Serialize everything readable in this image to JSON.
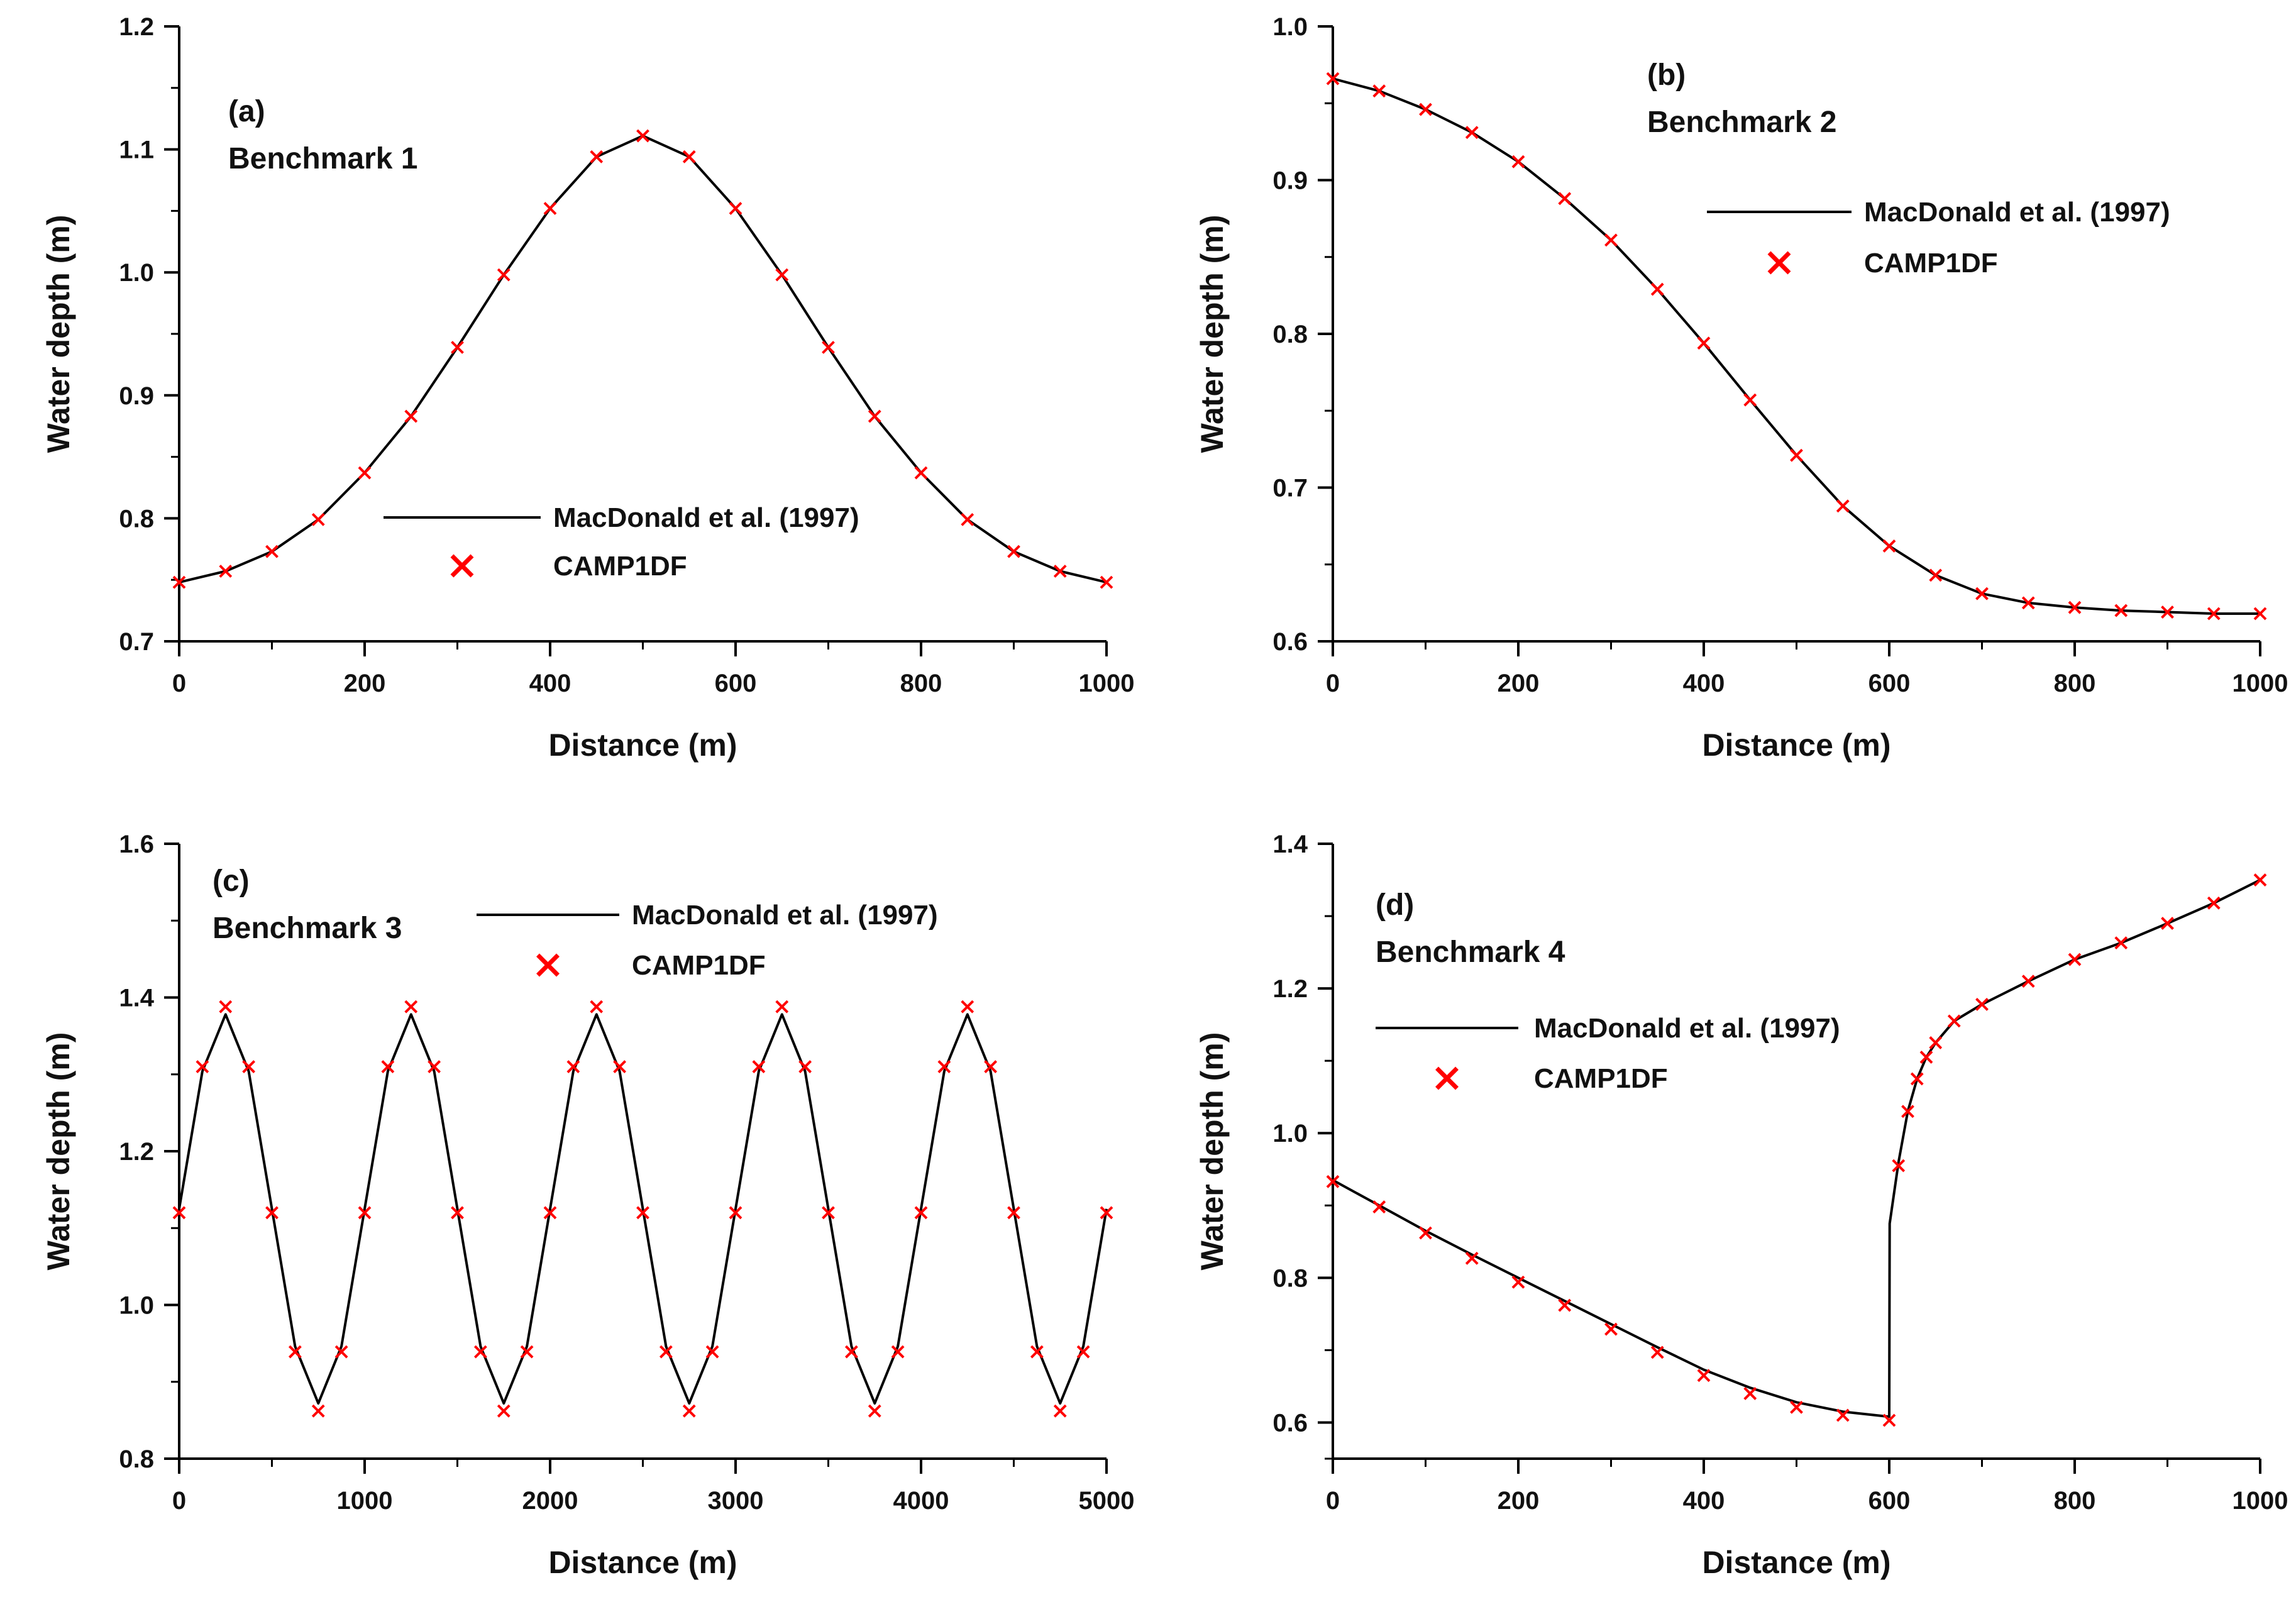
{
  "figure": {
    "line_color": "#000000",
    "marker_color": "#ff0000"
  },
  "chart_data": [
    {
      "id": "a",
      "type": "line",
      "panel_label": "(a)",
      "subtitle": "Benchmark 1",
      "xlabel": "Distance (m)",
      "ylabel": "Water depth (m)",
      "xlim": [
        0,
        1000
      ],
      "ylim": [
        0.7,
        1.2
      ],
      "xticks": [
        0,
        200,
        400,
        600,
        800,
        1000
      ],
      "xtick_labels": [
        "0",
        "200",
        "400",
        "600",
        "800",
        "1000"
      ],
      "yticks": [
        0.7,
        0.8,
        0.9,
        1.0,
        1.1,
        1.2
      ],
      "ytick_labels": [
        "0.7",
        "0.8",
        "0.9",
        "1.0",
        "1.1",
        "1.2"
      ],
      "legend": [
        "MacDonald et al. (1997)",
        "CAMP1DF"
      ],
      "legend_position": "lower-center",
      "series": [
        {
          "name": "MacDonald et al. (1997)",
          "style": "line",
          "x": [
            0,
            50,
            100,
            150,
            200,
            250,
            300,
            350,
            400,
            450,
            500,
            550,
            600,
            650,
            700,
            750,
            800,
            850,
            900,
            950,
            1000
          ],
          "y": [
            0.748,
            0.757,
            0.773,
            0.799,
            0.837,
            0.883,
            0.939,
            0.998,
            1.052,
            1.094,
            1.111,
            1.094,
            1.052,
            0.998,
            0.939,
            0.883,
            0.837,
            0.799,
            0.773,
            0.757,
            0.748
          ]
        },
        {
          "name": "CAMP1DF",
          "style": "marker-x",
          "x": [
            0,
            50,
            100,
            150,
            200,
            250,
            300,
            350,
            400,
            450,
            500,
            550,
            600,
            650,
            700,
            750,
            800,
            850,
            900,
            950,
            1000
          ],
          "y": [
            0.748,
            0.757,
            0.773,
            0.799,
            0.837,
            0.883,
            0.939,
            0.998,
            1.052,
            1.094,
            1.111,
            1.094,
            1.052,
            0.998,
            0.939,
            0.883,
            0.837,
            0.799,
            0.773,
            0.757,
            0.748
          ]
        }
      ]
    },
    {
      "id": "b",
      "type": "line",
      "panel_label": "(b)",
      "subtitle": "Benchmark 2",
      "xlabel": "Distance (m)",
      "ylabel": "Water depth (m)",
      "xlim": [
        0,
        1000
      ],
      "ylim": [
        0.6,
        1.0
      ],
      "xticks": [
        0,
        200,
        400,
        600,
        800,
        1000
      ],
      "xtick_labels": [
        "0",
        "200",
        "400",
        "600",
        "800",
        "1000"
      ],
      "yticks": [
        0.6,
        0.7,
        0.8,
        0.9,
        1.0
      ],
      "ytick_labels": [
        "0.6",
        "0.7",
        "0.8",
        "0.9",
        "1.0"
      ],
      "legend": [
        "MacDonald et al. (1997)",
        "CAMP1DF"
      ],
      "legend_position": "upper-right",
      "series": [
        {
          "name": "MacDonald et al. (1997)",
          "style": "line",
          "x": [
            0,
            50,
            100,
            150,
            200,
            250,
            300,
            350,
            400,
            450,
            500,
            550,
            600,
            650,
            700,
            750,
            800,
            850,
            900,
            950,
            1000
          ],
          "y": [
            0.966,
            0.958,
            0.946,
            0.931,
            0.912,
            0.888,
            0.861,
            0.829,
            0.794,
            0.757,
            0.721,
            0.688,
            0.662,
            0.643,
            0.631,
            0.625,
            0.622,
            0.62,
            0.619,
            0.618,
            0.618
          ]
        },
        {
          "name": "CAMP1DF",
          "style": "marker-x",
          "x": [
            0,
            50,
            100,
            150,
            200,
            250,
            300,
            350,
            400,
            450,
            500,
            550,
            600,
            650,
            700,
            750,
            800,
            850,
            900,
            950,
            1000
          ],
          "y": [
            0.966,
            0.958,
            0.946,
            0.931,
            0.912,
            0.888,
            0.861,
            0.829,
            0.794,
            0.757,
            0.721,
            0.688,
            0.662,
            0.643,
            0.631,
            0.625,
            0.622,
            0.62,
            0.619,
            0.618,
            0.618
          ]
        }
      ]
    },
    {
      "id": "c",
      "type": "line",
      "panel_label": "(c)",
      "subtitle": "Benchmark 3",
      "xlabel": "Distance (m)",
      "ylabel": "Water depth (m)",
      "xlim": [
        0,
        5000
      ],
      "ylim": [
        0.8,
        1.6
      ],
      "xticks": [
        0,
        1000,
        2000,
        3000,
        4000,
        5000
      ],
      "xtick_labels": [
        "0",
        "1000",
        "2000",
        "3000",
        "4000",
        "5000"
      ],
      "yticks": [
        0.8,
        1.0,
        1.2,
        1.4,
        1.6
      ],
      "ytick_labels": [
        "0.8",
        "1.0",
        "1.2",
        "1.4",
        "1.6"
      ],
      "legend": [
        "MacDonald et al. (1997)",
        "CAMP1DF"
      ],
      "legend_position": "top-center",
      "series": [
        {
          "name": "MacDonald et al. (1997)",
          "style": "line",
          "x": [
            0,
            125,
            250,
            375,
            500,
            625,
            750,
            875,
            1000,
            1125,
            1250,
            1375,
            1500,
            1625,
            1750,
            1875,
            2000,
            2125,
            2250,
            2375,
            2500,
            2625,
            2750,
            2875,
            3000,
            3125,
            3250,
            3375,
            3500,
            3625,
            3750,
            3875,
            4000,
            4125,
            4250,
            4375,
            4500,
            4625,
            4750,
            4875,
            5000
          ],
          "y": [
            1.125,
            1.304,
            1.378,
            1.304,
            1.125,
            0.946,
            0.872,
            0.946,
            1.125,
            1.304,
            1.378,
            1.304,
            1.125,
            0.946,
            0.872,
            0.946,
            1.125,
            1.304,
            1.378,
            1.304,
            1.125,
            0.946,
            0.872,
            0.946,
            1.125,
            1.304,
            1.378,
            1.304,
            1.125,
            0.946,
            0.872,
            0.946,
            1.125,
            1.304,
            1.378,
            1.304,
            1.125,
            0.946,
            0.872,
            0.946,
            1.125
          ]
        },
        {
          "name": "CAMP1DF",
          "style": "marker-x",
          "x": [
            0,
            125,
            250,
            375,
            500,
            625,
            750,
            875,
            1000,
            1125,
            1250,
            1375,
            1500,
            1625,
            1750,
            1875,
            2000,
            2125,
            2250,
            2375,
            2500,
            2625,
            2750,
            2875,
            3000,
            3125,
            3250,
            3375,
            3500,
            3625,
            3750,
            3875,
            4000,
            4125,
            4250,
            4375,
            4500,
            4625,
            4750,
            4875,
            5000
          ],
          "y": [
            1.12,
            1.31,
            1.388,
            1.31,
            1.12,
            0.939,
            0.862,
            0.939,
            1.12,
            1.31,
            1.388,
            1.31,
            1.12,
            0.939,
            0.862,
            0.939,
            1.12,
            1.31,
            1.388,
            1.31,
            1.12,
            0.939,
            0.862,
            0.939,
            1.12,
            1.31,
            1.388,
            1.31,
            1.12,
            0.939,
            0.862,
            0.939,
            1.12,
            1.31,
            1.388,
            1.31,
            1.12,
            0.939,
            0.862,
            0.939,
            1.12
          ]
        }
      ]
    },
    {
      "id": "d",
      "type": "line",
      "panel_label": "(d)",
      "subtitle": "Benchmark 4",
      "xlabel": "Distance (m)",
      "ylabel": "Water depth (m)",
      "xlim": [
        0,
        1000
      ],
      "ylim": [
        0.55,
        1.4
      ],
      "xticks": [
        0,
        200,
        400,
        600,
        800,
        1000
      ],
      "xtick_labels": [
        "0",
        "200",
        "400",
        "600",
        "800",
        "1000"
      ],
      "yticks": [
        0.6,
        0.8,
        1.0,
        1.2,
        1.4
      ],
      "ytick_labels": [
        "0.6",
        "0.8",
        "1.0",
        "1.2",
        "1.4"
      ],
      "legend": [
        "MacDonald et al. (1997)",
        "CAMP1DF"
      ],
      "legend_position": "upper-left",
      "series": [
        {
          "name": "MacDonald et al. (1997)",
          "style": "line",
          "x": [
            0,
            50,
            100,
            150,
            200,
            250,
            300,
            350,
            400,
            450,
            500,
            550,
            600,
            600.5,
            610,
            620,
            630,
            640,
            650,
            670,
            700,
            750,
            800,
            850,
            900,
            950,
            1000
          ],
          "y": [
            0.935,
            0.9,
            0.865,
            0.832,
            0.8,
            0.768,
            0.736,
            0.704,
            0.673,
            0.648,
            0.628,
            0.615,
            0.608,
            0.875,
            0.96,
            1.03,
            1.075,
            1.105,
            1.125,
            1.155,
            1.178,
            1.21,
            1.24,
            1.263,
            1.29,
            1.318,
            1.35
          ]
        },
        {
          "name": "CAMP1DF",
          "style": "marker-x",
          "x": [
            0,
            50,
            100,
            150,
            200,
            250,
            300,
            350,
            400,
            450,
            500,
            550,
            600,
            610,
            620,
            630,
            640,
            650,
            670,
            700,
            750,
            800,
            850,
            900,
            950,
            1000
          ],
          "y": [
            0.933,
            0.898,
            0.862,
            0.827,
            0.794,
            0.762,
            0.729,
            0.697,
            0.665,
            0.64,
            0.621,
            0.61,
            0.603,
            0.955,
            1.03,
            1.075,
            1.105,
            1.125,
            1.155,
            1.178,
            1.21,
            1.24,
            1.263,
            1.29,
            1.318,
            1.35
          ]
        }
      ]
    }
  ]
}
